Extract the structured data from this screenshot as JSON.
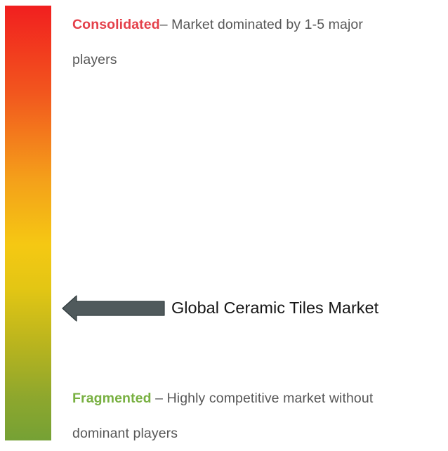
{
  "scale": {
    "top_color": "#f11f1f",
    "middle_color": "#f5c813",
    "bottom_color": "#75a135"
  },
  "consolidated": {
    "term": "Consolidated",
    "description_line1": "– Market dominated by 1-5 major",
    "description_line2": "players",
    "term_color": "#e4404a"
  },
  "fragmented": {
    "term": "Fragmented",
    "description_line1": " – Highly competitive market without",
    "description_line2": "dominant players",
    "term_color": "#78b041"
  },
  "marker": {
    "label": "Global Ceramic Tiles Market",
    "arrow_color": "#505a5c",
    "icon": "arrow-left-icon"
  }
}
